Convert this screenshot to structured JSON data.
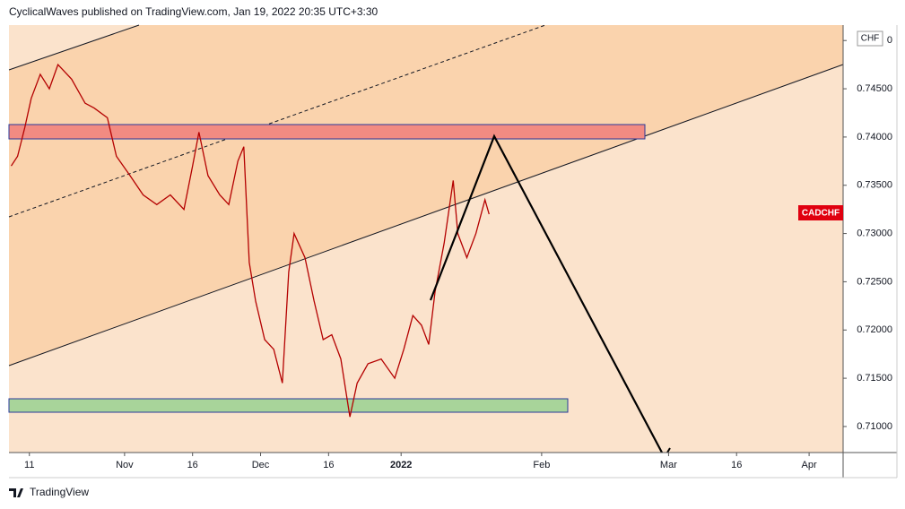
{
  "chart_data": {
    "type": "line",
    "publisher": "CyclicalWaves published on TradingView.com, Jan 19, 2022 20:35 UTC+3:30",
    "currency": "CHF",
    "symbol_label": "CADCHF",
    "footer": "TradingView",
    "xlim": [
      -4.5,
      179.5
    ],
    "xticks": [
      {
        "value": 0,
        "label": "11"
      },
      {
        "value": 21,
        "label": "Nov"
      },
      {
        "value": 36,
        "label": "16"
      },
      {
        "value": 51,
        "label": "Dec"
      },
      {
        "value": 66,
        "label": "16"
      },
      {
        "value": 82,
        "label": "2022"
      },
      {
        "value": 113,
        "label": "Feb"
      },
      {
        "value": 141,
        "label": "Mar"
      },
      {
        "value": 156,
        "label": "16"
      },
      {
        "value": 172,
        "label": "Apr"
      }
    ],
    "ylim": [
      0.7073,
      0.7516
    ],
    "yticks": [
      {
        "value": 0.71,
        "label": "0.71000"
      },
      {
        "value": 0.715,
        "label": "0.71500"
      },
      {
        "value": 0.72,
        "label": "0.72000"
      },
      {
        "value": 0.725,
        "label": "0.72500"
      },
      {
        "value": 0.73,
        "label": "0.73000"
      },
      {
        "value": 0.735,
        "label": "0.73500"
      },
      {
        "value": 0.74,
        "label": "0.74000"
      },
      {
        "value": 0.745,
        "label": "0.74500"
      },
      {
        "value": 0.75,
        "label": "0"
      }
    ],
    "series": [
      {
        "name": "CADCHF",
        "color": "#b40000",
        "x": [
          -4,
          -2.6,
          -1,
          0.4,
          2.4,
          4.4,
          6.3,
          9.3,
          12.3,
          14.3,
          17.2,
          19.2,
          22.2,
          25.1,
          28.1,
          31.1,
          34.1,
          36,
          37.4,
          39.4,
          42,
          44,
          46,
          47.3,
          48.5,
          49.9,
          51.9,
          53.9,
          55.8,
          57.2,
          58.4,
          60.8,
          62.8,
          64.8,
          66.7,
          68.7,
          70.7,
          72.3,
          74.7,
          77.6,
          80.6,
          82.6,
          84.6,
          86.5,
          88.1,
          89.5,
          91.5,
          93.5,
          94.5,
          96.5,
          98.5,
          100.5,
          101.4
        ],
        "values": [
          0.737,
          0.738,
          0.741,
          0.744,
          0.7465,
          0.745,
          0.7475,
          0.746,
          0.7435,
          0.743,
          0.742,
          0.738,
          0.736,
          0.734,
          0.733,
          0.734,
          0.7325,
          0.737,
          0.7405,
          0.736,
          0.734,
          0.733,
          0.7375,
          0.739,
          0.727,
          0.723,
          0.719,
          0.718,
          0.7145,
          0.726,
          0.73,
          0.7275,
          0.723,
          0.719,
          0.7195,
          0.717,
          0.711,
          0.7145,
          0.7165,
          0.717,
          0.715,
          0.718,
          0.7215,
          0.7205,
          0.7185,
          0.724,
          0.729,
          0.7355,
          0.73,
          0.7275,
          0.73,
          0.7335,
          0.732
        ]
      }
    ]
  }
}
